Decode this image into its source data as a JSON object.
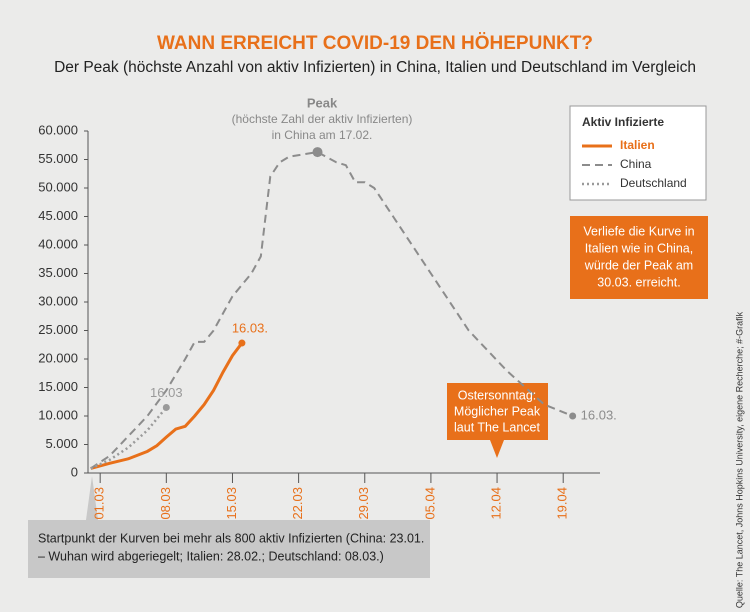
{
  "chart_data": {
    "type": "line",
    "title": "WANN ERREICHT COVID-19 DEN HÖHEPUNKT?",
    "subtitle": "Der Peak (höchste Anzahl von aktiv Infizierten) in China, Italien und Deutschland im Vergleich",
    "legend_title": "Aktiv Infizierte",
    "xlim": [
      -0.5,
      54
    ],
    "xticks": [
      {
        "value": 1,
        "label": "01.03"
      },
      {
        "value": 8,
        "label": "08.03"
      },
      {
        "value": 15,
        "label": "15.03"
      },
      {
        "value": 22,
        "label": "22.03"
      },
      {
        "value": 29,
        "label": "29.03"
      },
      {
        "value": 36,
        "label": "05.04"
      },
      {
        "value": 43,
        "label": "12.04"
      },
      {
        "value": 50,
        "label": "19.04"
      }
    ],
    "ylim": [
      0,
      60000
    ],
    "yticks": [
      0,
      {
        "value": 5000,
        "label": "5.000"
      },
      {
        "value": 10000,
        "label": "10.000"
      },
      {
        "value": 15000,
        "label": "15.000"
      },
      {
        "value": 20000,
        "label": "20.000"
      },
      {
        "value": 25000,
        "label": "25.000"
      },
      {
        "value": 30000,
        "label": "30.000"
      },
      {
        "value": 35000,
        "label": "35.000"
      },
      {
        "value": 40000,
        "label": "40.000"
      },
      {
        "value": 45000,
        "label": "45.000"
      },
      {
        "value": 50000,
        "label": "50.000"
      },
      {
        "value": 55000,
        "label": "55.000"
      },
      {
        "value": 60000,
        "label": "60.000"
      }
    ],
    "series": [
      {
        "name": "Italien",
        "color": "#e8701a",
        "style": "solid",
        "end_label": "16.03.",
        "x": [
          0,
          2,
          4,
          6,
          7,
          8,
          9,
          10,
          11,
          12,
          13,
          14,
          15,
          16
        ],
        "values": [
          800,
          1700,
          2500,
          3800,
          4800,
          6300,
          7700,
          8200,
          10000,
          12000,
          14500,
          17700,
          20600,
          22800
        ]
      },
      {
        "name": "China",
        "color": "#8c8c8c",
        "style": "dashed",
        "end_label": "16.03.",
        "x": [
          0,
          2,
          4,
          6,
          8,
          10,
          11,
          12,
          13,
          15,
          17,
          18,
          19,
          20,
          21,
          24,
          26,
          27,
          28,
          29,
          30,
          32,
          36,
          40,
          44,
          48,
          51
        ],
        "values": [
          800,
          3000,
          6500,
          10000,
          14500,
          20000,
          23000,
          23000,
          25000,
          31000,
          35000,
          38000,
          52000,
          54500,
          55500,
          56300,
          54500,
          54000,
          51000,
          51000,
          50000,
          45000,
          35000,
          25000,
          18000,
          12000,
          10000
        ]
      },
      {
        "name": "Deutschland",
        "color": "#9a9a9a",
        "style": "dotted",
        "end_label": "16.03",
        "x": [
          0,
          2,
          4,
          6,
          8
        ],
        "values": [
          800,
          2300,
          4500,
          7500,
          11500
        ]
      }
    ],
    "peak_annotation": [
      "Peak",
      "(höchste Zahl der aktiv Infizierten)",
      "in China am 17.02."
    ],
    "projection_note": [
      "Verliefe die Kurve in",
      "Italien wie in China,",
      "würde der Peak am",
      "30.03. erreicht."
    ],
    "easter_note": [
      "Ostersonntag:",
      "Möglicher Peak",
      "laut The Lancet"
    ],
    "start_note": [
      "Startpunkt der Kurven bei mehr als 800 aktiv Infizierten (China: 23.01.",
      "– Wuhan wird abgeriegelt; Italien: 28.02.; Deutschland: 08.03.)"
    ],
    "source": "Quelle: The Lancet, Johns Hopkins University, eigene Recherche; #-Grafik"
  }
}
